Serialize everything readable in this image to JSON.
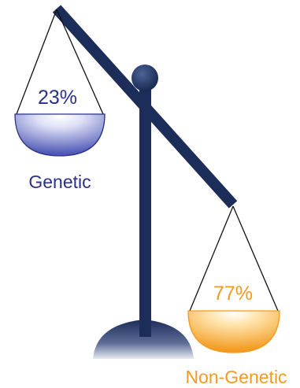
{
  "colors": {
    "beam": "#1c2d59",
    "genetic_text": "#2b3187",
    "genetic_pan_light": "#f4f4fc",
    "genetic_pan_dark": "#5a64be",
    "nongenetic_text": "#f39a1f",
    "nongenetic_pan_light": "#fff4d8",
    "nongenetic_pan_dark": "#f6a62c",
    "string": "#111111"
  },
  "left_pan": {
    "percent": "23%",
    "label": "Genetic",
    "share": 0.23
  },
  "right_pan": {
    "percent": "77%",
    "label": "Non-Genetic",
    "share": 0.77
  }
}
